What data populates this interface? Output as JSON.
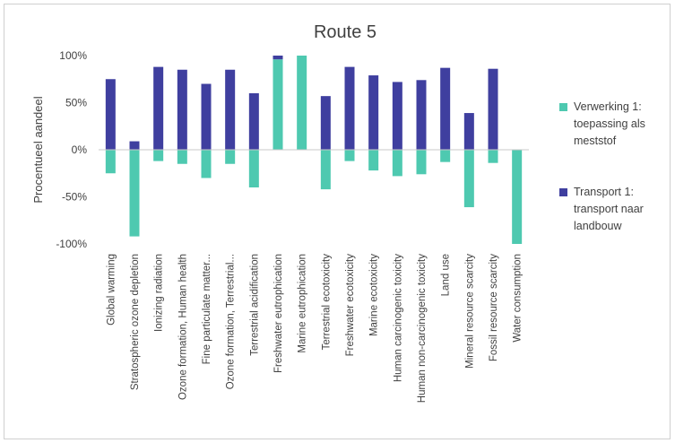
{
  "chart_data": {
    "type": "bar",
    "title": "Route 5",
    "ylabel": "Procentueel aandeel",
    "xlabel": "",
    "ylim": [
      -100,
      100
    ],
    "yticks": [
      "100%",
      "50%",
      "0%",
      "-50%",
      "-100%"
    ],
    "ytick_values": [
      100,
      50,
      0,
      -50,
      -100
    ],
    "grid": false,
    "legend_position": "right",
    "stacked": true,
    "categories": [
      "Global warming",
      "Stratospheric ozone depletion",
      "Ionizing radiation",
      "Ozone formation, Human health",
      "Fine particulate matter...",
      "Ozone formation, Terrestrial...",
      "Terrestrial acidification",
      "Freshwater eutrophication",
      "Marine eutrophication",
      "Terrestrial ecotoxicity",
      "Freshwater ecotoxicity",
      "Marine ecotoxicity",
      "Human carcinogenic toxicity",
      "Human non-carcinogenic toxicity",
      "Land use",
      "Mineral resource scarcity",
      "Fossil resource scarcity",
      "Water consumption"
    ],
    "series": [
      {
        "name": "Verwerking 1: toepassing als meststof",
        "color": "#4ec9b0",
        "values": [
          -25,
          -92,
          -12,
          -15,
          -30,
          -15,
          -40,
          96,
          100,
          -42,
          -12,
          -22,
          -28,
          -26,
          -13,
          -61,
          -14,
          -100
        ]
      },
      {
        "name": "Transport 1: transport naar landbouw",
        "color": "#3f3f9f",
        "values": [
          75,
          9,
          88,
          85,
          70,
          85,
          60,
          4,
          0,
          57,
          88,
          79,
          72,
          74,
          87,
          39,
          86,
          0
        ]
      }
    ]
  }
}
